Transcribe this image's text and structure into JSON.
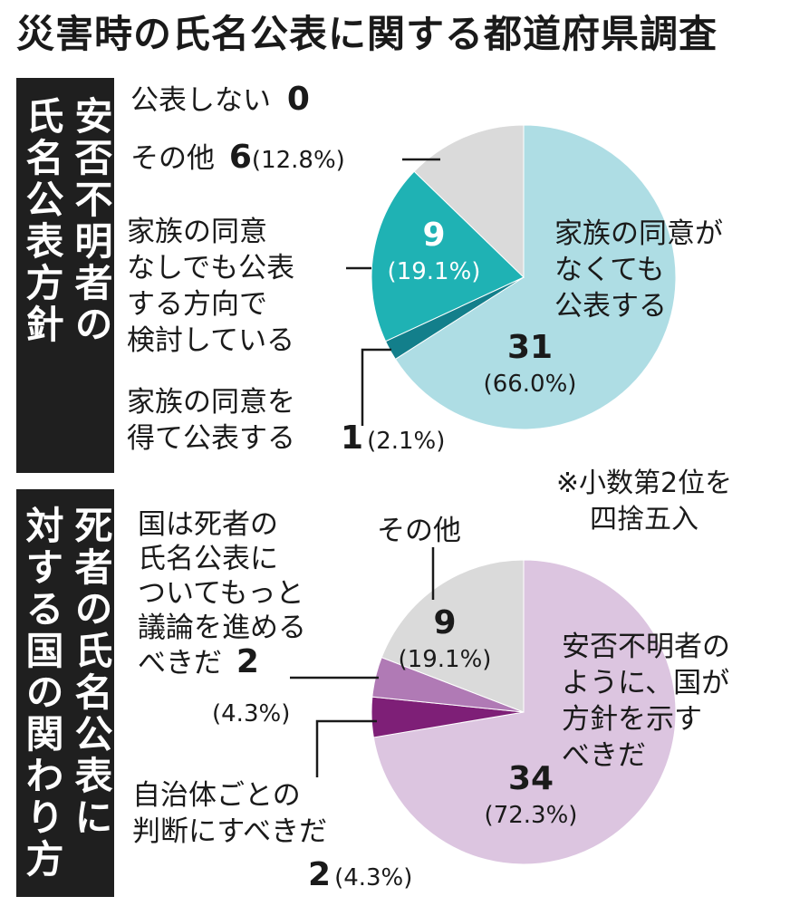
{
  "title": "災害時の氏名公表に関する都道府県調査",
  "note": [
    "※小数第2位を",
    "四捨五入"
  ],
  "chart_data": [
    {
      "type": "pie",
      "heading": [
        "安否不明者の",
        "氏名公表方針"
      ],
      "slices": [
        {
          "label": "家族の同意がなくても公表する",
          "value": 31,
          "percent": "(66.0%)",
          "color": "#aedde4"
        },
        {
          "label": "家族の同意を得て公表する",
          "value": 1,
          "percent": "(2.1%)",
          "color": "#137f8b"
        },
        {
          "label": "家族の同意なしでも公表する方向で検討している",
          "value": 9,
          "percent": "(19.1%)",
          "color": "#1fb2b4"
        },
        {
          "label": "その他",
          "value": 6,
          "percent": "(12.8%)",
          "color": "#dadada"
        },
        {
          "label": "公表しない",
          "value": 0,
          "color": "#ffffff"
        }
      ],
      "labels": {
        "main_lines": [
          "家族の同意が",
          "なくても",
          "公表する"
        ],
        "main_value": "31",
        "main_pct": "(66.0%)",
        "consider_value": "9",
        "consider_pct": "(19.1%)",
        "consider_lines": [
          "家族の同意",
          "なしでも公表",
          "する方向で",
          "検討している"
        ],
        "consent_lines": [
          "家族の同意を",
          "得て公表する"
        ],
        "consent_value": "1",
        "consent_pct": "(2.1%)",
        "other_label": "その他",
        "other_value": "6",
        "other_pct": "(12.8%)",
        "none_label": "公表しない",
        "none_value": "0"
      }
    },
    {
      "type": "pie",
      "heading": [
        "死者の氏名公表に",
        "対する国の関わり方"
      ],
      "slices": [
        {
          "label": "安否不明者のように、国が方針を示すべきだ",
          "value": 34,
          "percent": "(72.3%)",
          "color": "#dcc5e0"
        },
        {
          "label": "自治体ごとの判断にすべきだ",
          "value": 2,
          "percent": "(4.3%)",
          "color": "#7e1f77"
        },
        {
          "label": "国は死者の氏名公表についてもっと議論を進めるべきだ",
          "value": 2,
          "percent": "(4.3%)",
          "color": "#b07ab5"
        },
        {
          "label": "その他",
          "value": 9,
          "percent": "(19.1%)",
          "color": "#dadada"
        }
      ],
      "labels": {
        "main_lines": [
          "安否不明者の",
          "ように、国が",
          "方針を示す",
          "べきだ"
        ],
        "main_value": "34",
        "main_pct": "(72.3%)",
        "other_label": "その他",
        "other_value": "9",
        "other_pct": "(19.1%)",
        "discuss_lines": [
          "国は死者の",
          "氏名公表に",
          "ついてもっと",
          "議論を進める",
          "べきだ"
        ],
        "discuss_value": "2",
        "discuss_pct": "(4.3%)",
        "local_lines": [
          "自治体ごとの",
          "判断にすべきだ"
        ],
        "local_value": "2",
        "local_pct": "(4.3%)"
      }
    }
  ]
}
